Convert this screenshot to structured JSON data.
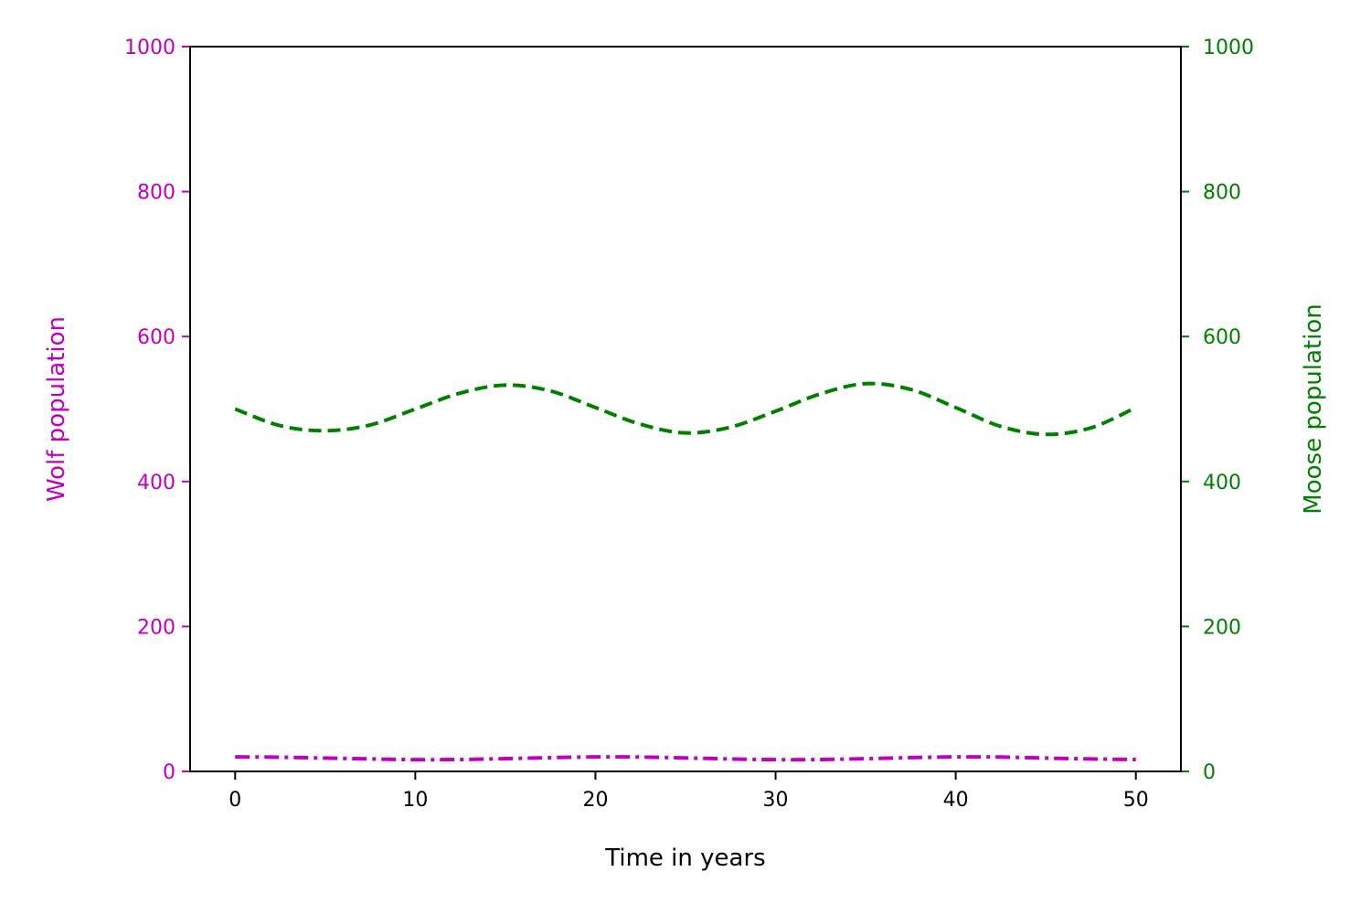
{
  "colors": {
    "wolf": "#bf00bf",
    "moose": "#008000",
    "axis": "#000000"
  },
  "chart_data": {
    "type": "line",
    "xlabel": "Time in years",
    "ylabel_left": "Wolf population",
    "ylabel_right": "Moose population",
    "xlim": [
      -2.5,
      52.5
    ],
    "ylim_left": [
      0,
      1000
    ],
    "ylim_right": [
      0,
      1000
    ],
    "x_ticks": [
      0,
      10,
      20,
      30,
      40,
      50
    ],
    "y_ticks_left": [
      0,
      200,
      400,
      600,
      800,
      1000
    ],
    "y_ticks_right": [
      0,
      200,
      400,
      600,
      800,
      1000
    ],
    "grid": false,
    "series": [
      {
        "axis": "left",
        "color": "#bf00bf",
        "linestyle": "dashdot",
        "x": [
          0,
          2.5,
          5,
          7.5,
          10,
          12.5,
          15,
          17.5,
          20,
          22.5,
          25,
          27.5,
          30,
          32.5,
          35,
          37.5,
          40,
          42.5,
          45,
          47.5,
          50
        ],
        "values": [
          20,
          19.6,
          18.4,
          17.2,
          16.2,
          16.4,
          17.6,
          19.0,
          20.0,
          19.8,
          18.6,
          17.2,
          16.2,
          16.4,
          17.6,
          19.0,
          20.0,
          19.8,
          18.4,
          17.2,
          16.4
        ]
      },
      {
        "axis": "right",
        "color": "#008000",
        "linestyle": "dashed",
        "x": [
          0,
          2.5,
          5,
          7.5,
          10,
          12.5,
          15,
          17.5,
          20,
          22.5,
          25,
          27.5,
          30,
          32.5,
          35,
          37.5,
          40,
          42.5,
          45,
          47.5,
          50
        ],
        "values": [
          500,
          477,
          470,
          478,
          500,
          522,
          533,
          525,
          502,
          479,
          467,
          475,
          497,
          521,
          535,
          527,
          502,
          476,
          465,
          474,
          502
        ]
      }
    ]
  }
}
